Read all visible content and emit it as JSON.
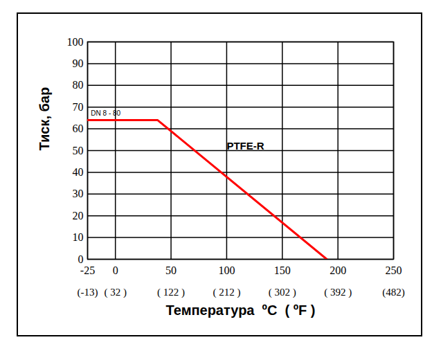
{
  "chart_data": {
    "type": "line",
    "x_label": "Температура  ºC  ( ºF )",
    "y_label": "Тиск, бар",
    "x": [
      -25,
      38,
      190
    ],
    "series": [
      {
        "name": "PTFE-R",
        "color": "#ff0000",
        "values": [
          64,
          64,
          0
        ],
        "label_x": 100,
        "label_y": 52
      }
    ],
    "annotations": [
      {
        "text": "DN 8 - 80",
        "x": -22,
        "y": 67
      }
    ],
    "xlim": [
      -25,
      250
    ],
    "xticks": [
      -25,
      0,
      50,
      100,
      150,
      200,
      250
    ],
    "x2ticks": [
      {
        "value": -25,
        "label": "(-13)"
      },
      {
        "value": 0,
        "label": "( 32 )"
      },
      {
        "value": 50,
        "label": "( 122 )"
      },
      {
        "value": 100,
        "label": "( 212 )"
      },
      {
        "value": 150,
        "label": "( 302 )"
      },
      {
        "value": 200,
        "label": "( 392 )"
      },
      {
        "value": 250,
        "label": "(482)"
      }
    ],
    "ylim": [
      0,
      100
    ],
    "yticks": [
      0,
      10,
      20,
      30,
      40,
      50,
      60,
      70,
      80,
      90,
      100
    ],
    "grid": true
  }
}
